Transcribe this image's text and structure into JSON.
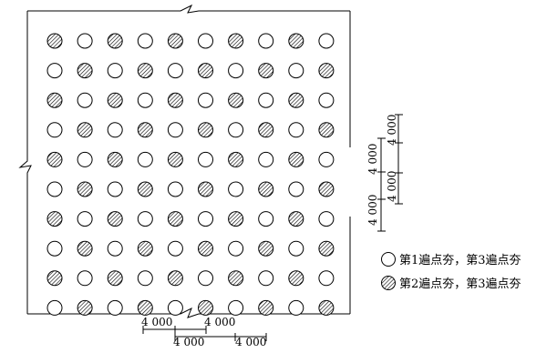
{
  "diagram": {
    "grid": {
      "rows": [
        [
          2,
          1,
          2,
          1,
          2,
          1,
          2,
          1,
          2,
          1
        ],
        [
          1,
          2,
          1,
          2,
          1,
          2,
          1,
          2,
          1,
          2
        ],
        [
          2,
          1,
          2,
          1,
          2,
          1,
          2,
          1,
          2,
          1
        ],
        [
          1,
          2,
          1,
          2,
          1,
          2,
          1,
          2,
          1,
          2
        ],
        [
          2,
          1,
          2,
          1,
          2,
          1,
          2,
          1,
          2,
          1
        ],
        [
          1,
          2,
          1,
          2,
          1,
          2,
          1,
          2,
          1,
          2
        ],
        [
          2,
          1,
          2,
          1,
          2,
          1,
          2,
          1,
          2,
          1
        ],
        [
          1,
          2,
          1,
          2,
          1,
          2,
          1,
          2,
          1,
          2
        ],
        [
          2,
          1,
          2,
          1,
          2,
          1,
          2,
          1,
          2,
          1
        ],
        [
          1,
          2,
          1,
          2,
          1,
          2,
          1,
          2,
          1,
          2
        ]
      ]
    },
    "bottom_dimensions": {
      "upper": [
        "4 000",
        "4 000"
      ],
      "lower": [
        "4 000",
        "4 000"
      ]
    },
    "right_dimensions": {
      "outer": [
        "4 000",
        "4 000"
      ],
      "inner": [
        "4 000",
        "4 000"
      ]
    },
    "legend": [
      {
        "type": 1,
        "label": "第1遍点夯，第3遍点夯"
      },
      {
        "type": 2,
        "label": "第2遍点夯，第3遍点夯"
      }
    ],
    "colors": {
      "stroke": "#000000",
      "hatch": "#000000",
      "background": "#ffffff"
    }
  }
}
